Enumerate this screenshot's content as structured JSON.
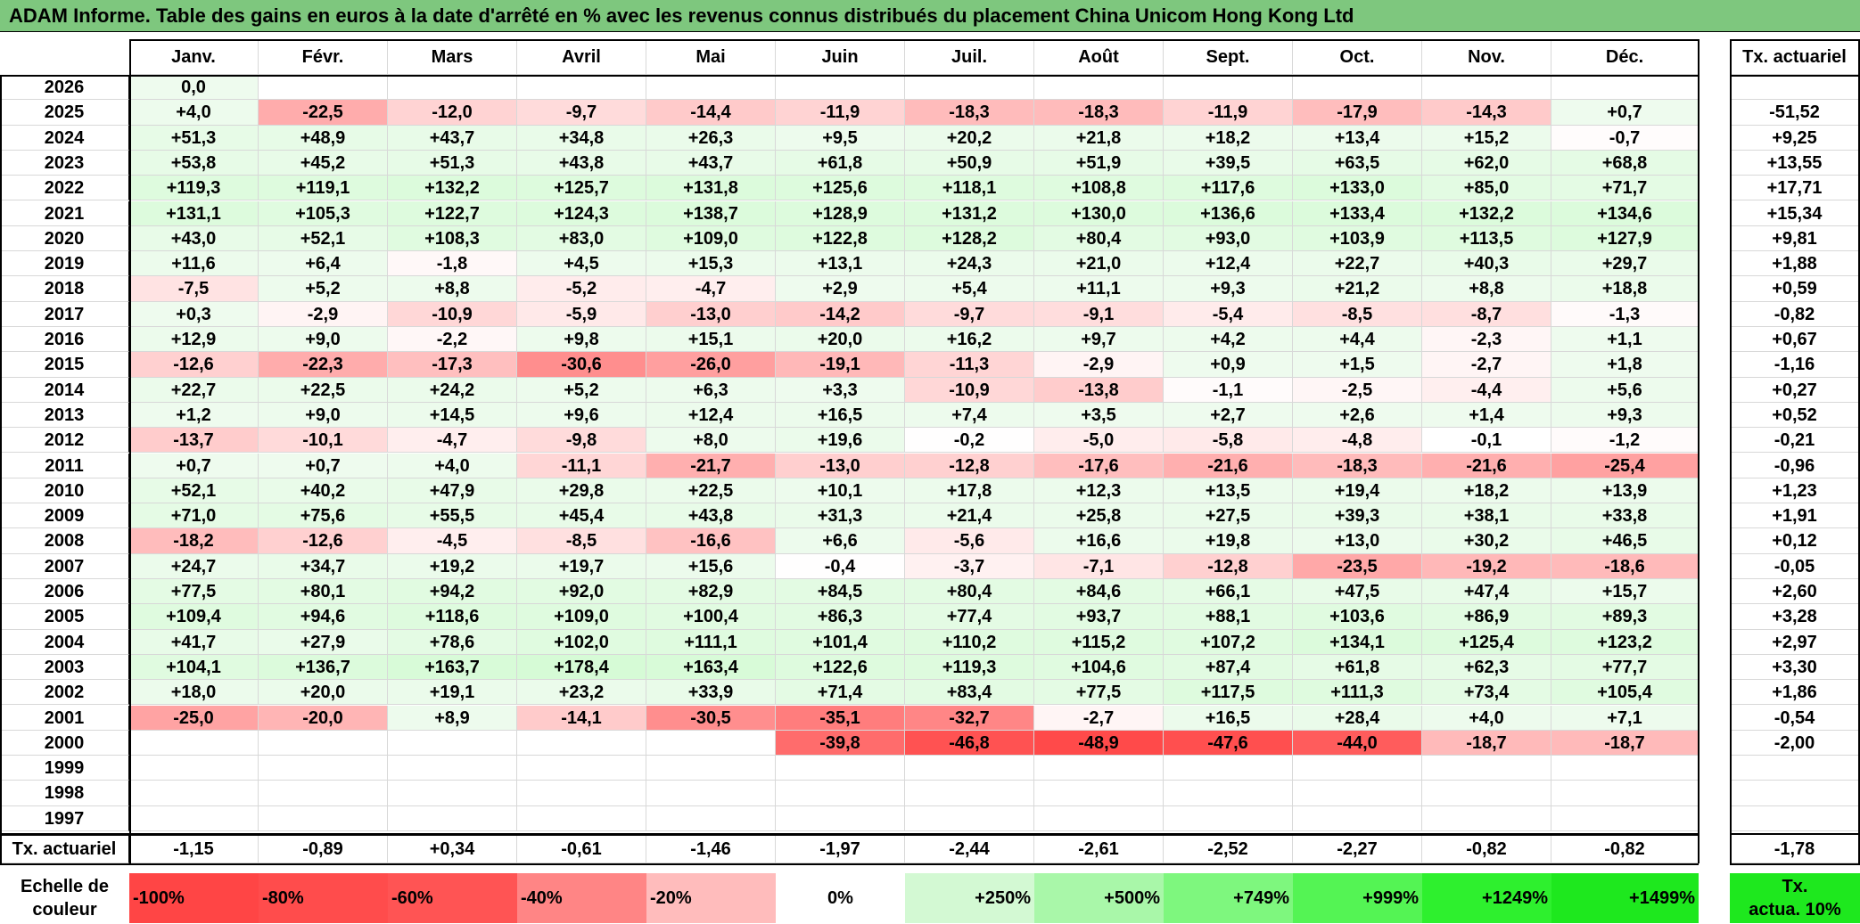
{
  "title": "ADAM Informe. Table des gains en euros à la date d'arrêté en % avec les revenus connus distribués du placement China Unicom Hong Kong Ltd",
  "months": [
    "Janv.",
    "Févr.",
    "Mars",
    "Avril",
    "Mai",
    "Juin",
    "Juil.",
    "Août",
    "Sept.",
    "Oct.",
    "Nov.",
    "Déc."
  ],
  "rate_header": "Tx. actuariel",
  "rows": [
    {
      "year": "2026",
      "values": [
        "0,0",
        "",
        "",
        "",
        "",
        "",
        "",
        "",
        "",
        "",
        "",
        ""
      ],
      "rate": ""
    },
    {
      "year": "2025",
      "values": [
        "+4,0",
        "-22,5",
        "-12,0",
        "-9,7",
        "-14,4",
        "-11,9",
        "-18,3",
        "-18,3",
        "-11,9",
        "-17,9",
        "-14,3",
        "+0,7"
      ],
      "rate": "-51,52"
    },
    {
      "year": "2024",
      "values": [
        "+51,3",
        "+48,9",
        "+43,7",
        "+34,8",
        "+26,3",
        "+9,5",
        "+20,2",
        "+21,8",
        "+18,2",
        "+13,4",
        "+15,2",
        "-0,7"
      ],
      "rate": "+9,25"
    },
    {
      "year": "2023",
      "values": [
        "+53,8",
        "+45,2",
        "+51,3",
        "+43,8",
        "+43,7",
        "+61,8",
        "+50,9",
        "+51,9",
        "+39,5",
        "+63,5",
        "+62,0",
        "+68,8"
      ],
      "rate": "+13,55"
    },
    {
      "year": "2022",
      "values": [
        "+119,3",
        "+119,1",
        "+132,2",
        "+125,7",
        "+131,8",
        "+125,6",
        "+118,1",
        "+108,8",
        "+117,6",
        "+133,0",
        "+85,0",
        "+71,7"
      ],
      "rate": "+17,71"
    },
    {
      "year": "2021",
      "values": [
        "+131,1",
        "+105,3",
        "+122,7",
        "+124,3",
        "+138,7",
        "+128,9",
        "+131,2",
        "+130,0",
        "+136,6",
        "+133,4",
        "+132,2",
        "+134,6"
      ],
      "rate": "+15,34"
    },
    {
      "year": "2020",
      "values": [
        "+43,0",
        "+52,1",
        "+108,3",
        "+83,0",
        "+109,0",
        "+122,8",
        "+128,2",
        "+80,4",
        "+93,0",
        "+103,9",
        "+113,5",
        "+127,9"
      ],
      "rate": "+9,81"
    },
    {
      "year": "2019",
      "values": [
        "+11,6",
        "+6,4",
        "-1,8",
        "+4,5",
        "+15,3",
        "+13,1",
        "+24,3",
        "+21,0",
        "+12,4",
        "+22,7",
        "+40,3",
        "+29,7"
      ],
      "rate": "+1,88"
    },
    {
      "year": "2018",
      "values": [
        "-7,5",
        "+5,2",
        "+8,8",
        "-5,2",
        "-4,7",
        "+2,9",
        "+5,4",
        "+11,1",
        "+9,3",
        "+21,2",
        "+8,8",
        "+18,8"
      ],
      "rate": "+0,59"
    },
    {
      "year": "2017",
      "values": [
        "+0,3",
        "-2,9",
        "-10,9",
        "-5,9",
        "-13,0",
        "-14,2",
        "-9,7",
        "-9,1",
        "-5,4",
        "-8,5",
        "-8,7",
        "-1,3"
      ],
      "rate": "-0,82"
    },
    {
      "year": "2016",
      "values": [
        "+12,9",
        "+9,0",
        "-2,2",
        "+9,8",
        "+15,1",
        "+20,0",
        "+16,2",
        "+9,7",
        "+4,2",
        "+4,4",
        "-2,3",
        "+1,1"
      ],
      "rate": "+0,67"
    },
    {
      "year": "2015",
      "values": [
        "-12,6",
        "-22,3",
        "-17,3",
        "-30,6",
        "-26,0",
        "-19,1",
        "-11,3",
        "-2,9",
        "+0,9",
        "+1,5",
        "-2,7",
        "+1,8"
      ],
      "rate": "-1,16"
    },
    {
      "year": "2014",
      "values": [
        "+22,7",
        "+22,5",
        "+24,2",
        "+5,2",
        "+6,3",
        "+3,3",
        "-10,9",
        "-13,8",
        "-1,1",
        "-2,5",
        "-4,4",
        "+5,6"
      ],
      "rate": "+0,27"
    },
    {
      "year": "2013",
      "values": [
        "+1,2",
        "+9,0",
        "+14,5",
        "+9,6",
        "+12,4",
        "+16,5",
        "+7,4",
        "+3,5",
        "+2,7",
        "+2,6",
        "+1,4",
        "+9,3"
      ],
      "rate": "+0,52"
    },
    {
      "year": "2012",
      "values": [
        "-13,7",
        "-10,1",
        "-4,7",
        "-9,8",
        "+8,0",
        "+19,6",
        "-0,2",
        "-5,0",
        "-5,8",
        "-4,8",
        "-0,1",
        "-1,2"
      ],
      "rate": "-0,21"
    },
    {
      "year": "2011",
      "values": [
        "+0,7",
        "+0,7",
        "+4,0",
        "-11,1",
        "-21,7",
        "-13,0",
        "-12,8",
        "-17,6",
        "-21,6",
        "-18,3",
        "-21,6",
        "-25,4"
      ],
      "rate": "-0,96"
    },
    {
      "year": "2010",
      "values": [
        "+52,1",
        "+40,2",
        "+47,9",
        "+29,8",
        "+22,5",
        "+10,1",
        "+17,8",
        "+12,3",
        "+13,5",
        "+19,4",
        "+18,2",
        "+13,9"
      ],
      "rate": "+1,23"
    },
    {
      "year": "2009",
      "values": [
        "+71,0",
        "+75,6",
        "+55,5",
        "+45,4",
        "+43,8",
        "+31,3",
        "+21,4",
        "+25,8",
        "+27,5",
        "+39,3",
        "+38,1",
        "+33,8"
      ],
      "rate": "+1,91"
    },
    {
      "year": "2008",
      "values": [
        "-18,2",
        "-12,6",
        "-4,5",
        "-8,5",
        "-16,6",
        "+6,6",
        "-5,6",
        "+16,6",
        "+19,8",
        "+13,0",
        "+30,2",
        "+46,5"
      ],
      "rate": "+0,12"
    },
    {
      "year": "2007",
      "values": [
        "+24,7",
        "+34,7",
        "+19,2",
        "+19,7",
        "+15,6",
        "-0,4",
        "-3,7",
        "-7,1",
        "-12,8",
        "-23,5",
        "-19,2",
        "-18,6"
      ],
      "rate": "-0,05"
    },
    {
      "year": "2006",
      "values": [
        "+77,5",
        "+80,1",
        "+94,2",
        "+92,0",
        "+82,9",
        "+84,5",
        "+80,4",
        "+84,6",
        "+66,1",
        "+47,5",
        "+47,4",
        "+15,7"
      ],
      "rate": "+2,60"
    },
    {
      "year": "2005",
      "values": [
        "+109,4",
        "+94,6",
        "+118,6",
        "+109,0",
        "+100,4",
        "+86,3",
        "+77,4",
        "+93,7",
        "+88,1",
        "+103,6",
        "+86,9",
        "+89,3"
      ],
      "rate": "+3,28"
    },
    {
      "year": "2004",
      "values": [
        "+41,7",
        "+27,9",
        "+78,6",
        "+102,0",
        "+111,1",
        "+101,4",
        "+110,2",
        "+115,2",
        "+107,2",
        "+134,1",
        "+125,4",
        "+123,2"
      ],
      "rate": "+2,97"
    },
    {
      "year": "2003",
      "values": [
        "+104,1",
        "+136,7",
        "+163,7",
        "+178,4",
        "+163,4",
        "+122,6",
        "+119,3",
        "+104,6",
        "+87,4",
        "+61,8",
        "+62,3",
        "+77,7"
      ],
      "rate": "+3,30"
    },
    {
      "year": "2002",
      "values": [
        "+18,0",
        "+20,0",
        "+19,1",
        "+23,2",
        "+33,9",
        "+71,4",
        "+83,4",
        "+77,5",
        "+117,5",
        "+111,3",
        "+73,4",
        "+105,4"
      ],
      "rate": "+1,86"
    },
    {
      "year": "2001",
      "values": [
        "-25,0",
        "-20,0",
        "+8,9",
        "-14,1",
        "-30,5",
        "-35,1",
        "-32,7",
        "-2,7",
        "+16,5",
        "+28,4",
        "+4,0",
        "+7,1"
      ],
      "rate": "-0,54"
    },
    {
      "year": "2000",
      "values": [
        "",
        "",
        "",
        "",
        "",
        "-39,8",
        "-46,8",
        "-48,9",
        "-47,6",
        "-44,0",
        "-18,7",
        "-18,7"
      ],
      "rate": "-2,00"
    },
    {
      "year": "1999",
      "values": [
        "",
        "",
        "",
        "",
        "",
        "",
        "",
        "",
        "",
        "",
        "",
        ""
      ],
      "rate": ""
    },
    {
      "year": "1998",
      "values": [
        "",
        "",
        "",
        "",
        "",
        "",
        "",
        "",
        "",
        "",
        "",
        ""
      ],
      "rate": ""
    },
    {
      "year": "1997",
      "values": [
        "",
        "",
        "",
        "",
        "",
        "",
        "",
        "",
        "",
        "",
        "",
        ""
      ],
      "rate": ""
    }
  ],
  "footer": {
    "label": "Tx. actuariel",
    "values": [
      "-1,15",
      "-0,89",
      "+0,34",
      "-0,61",
      "-1,46",
      "-1,97",
      "-2,44",
      "-2,61",
      "-2,52",
      "-2,27",
      "-0,82",
      "-0,82"
    ],
    "rate": "-1,78"
  },
  "legend": {
    "label_line1": "Echelle de",
    "label_line2": "couleur",
    "items": [
      {
        "label": "-100%",
        "color": "#ff4545"
      },
      {
        "label": "-80%",
        "color": "#ff4c4c"
      },
      {
        "label": "-60%",
        "color": "#ff5454"
      },
      {
        "label": "-40%",
        "color": "#ff8585"
      },
      {
        "label": "-20%",
        "color": "#ffbcbc"
      },
      {
        "label": "0%",
        "color": "#ffffff"
      },
      {
        "label": "+250%",
        "color": "#d3f9d3"
      },
      {
        "label": "+500%",
        "color": "#a9f7a9"
      },
      {
        "label": "+749%",
        "color": "#7ef77e"
      },
      {
        "label": "+999%",
        "color": "#54f454"
      },
      {
        "label": "+1249%",
        "color": "#2ef02e"
      },
      {
        "label": "+1499%",
        "color": "#1ee81e"
      }
    ],
    "rate_line1": "Tx.",
    "rate_line2": "actua. 10%",
    "rate_color": "#1ee81e"
  },
  "colors": {
    "title_bg": "#7ec77e",
    "negative": "#ff4545",
    "positive_light": "#eefbee"
  }
}
